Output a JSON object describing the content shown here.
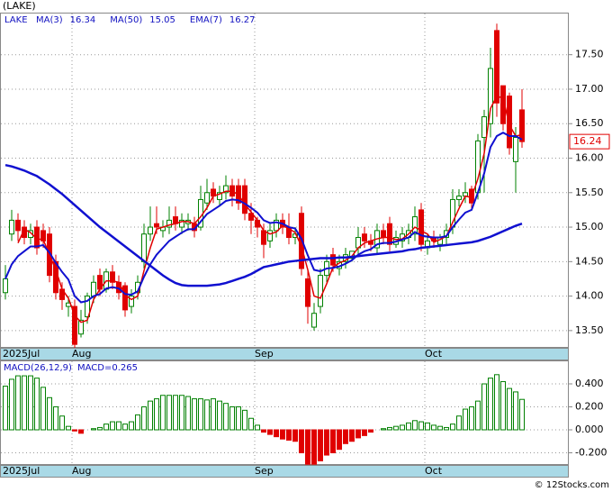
{
  "credit": "© 12Stocks.com",
  "chart_data": [
    {
      "type": "candlestick",
      "title": "(LAKE)",
      "symbol": "LAKE",
      "up_color": "#008000",
      "down_color": "#e00000",
      "grid": true,
      "categories": [
        "2025Jul",
        null,
        null,
        null,
        null,
        null,
        null,
        null,
        null,
        null,
        null,
        "Aug",
        null,
        null,
        null,
        null,
        null,
        null,
        null,
        null,
        null,
        null,
        null,
        null,
        null,
        null,
        null,
        null,
        null,
        null,
        null,
        null,
        null,
        null,
        null,
        null,
        null,
        null,
        null,
        null,
        "Sep",
        null,
        null,
        null,
        null,
        null,
        null,
        null,
        null,
        null,
        null,
        null,
        null,
        null,
        null,
        null,
        null,
        null,
        null,
        null,
        null,
        null,
        null,
        null,
        null,
        null,
        null,
        "Oct",
        null,
        null,
        null,
        null,
        null,
        null,
        null,
        null,
        null,
        null,
        null,
        null,
        null,
        null,
        null
      ],
      "open": [
        14.05,
        14.9,
        15.1,
        15.0,
        14.85,
        15.0,
        14.95,
        14.9,
        14.5,
        14.1,
        13.85,
        13.85,
        13.45,
        13.7,
        14.0,
        14.3,
        14.1,
        14.35,
        14.2,
        14.15,
        13.85,
        14.05,
        14.5,
        14.9,
        15.05,
        14.95,
        15.0,
        15.15,
        15.0,
        15.05,
        15.05,
        15.0,
        15.35,
        15.55,
        15.4,
        15.5,
        15.6,
        15.6,
        15.6,
        15.2,
        15.1,
        14.95,
        14.8,
        14.95,
        15.1,
        15.0,
        14.85,
        15.2,
        14.25,
        13.55,
        13.85,
        14.3,
        14.6,
        14.4,
        14.5,
        14.55,
        14.7,
        14.9,
        14.8,
        14.7,
        14.95,
        15.05,
        14.75,
        14.8,
        14.85,
        14.9,
        15.25,
        14.7,
        14.85,
        14.75,
        14.85,
        15.0,
        15.4,
        15.45,
        15.55,
        15.5,
        16.3,
        16.5,
        17.85,
        17.05,
        16.9,
        15.95,
        16.7
      ],
      "high": [
        14.45,
        15.25,
        15.2,
        15.1,
        15.05,
        15.1,
        15.05,
        15.0,
        14.6,
        14.2,
        14.0,
        13.95,
        13.8,
        14.05,
        14.3,
        14.4,
        14.4,
        14.45,
        14.3,
        14.2,
        14.1,
        14.3,
        15.05,
        15.3,
        15.3,
        15.1,
        15.3,
        15.3,
        15.2,
        15.2,
        15.15,
        15.6,
        15.7,
        15.65,
        15.6,
        15.75,
        15.7,
        15.7,
        15.7,
        15.35,
        15.15,
        15.05,
        15.05,
        15.2,
        15.2,
        15.2,
        15.0,
        15.3,
        14.4,
        13.9,
        14.4,
        14.6,
        14.7,
        14.6,
        14.7,
        14.65,
        15.0,
        15.0,
        14.9,
        15.05,
        15.05,
        15.15,
        14.95,
        15.0,
        15.05,
        15.3,
        15.35,
        14.9,
        14.95,
        14.9,
        15.05,
        15.55,
        15.55,
        15.65,
        15.6,
        16.35,
        16.7,
        17.6,
        17.95,
        17.05,
        16.95,
        16.45,
        17.0
      ],
      "low": [
        13.95,
        14.8,
        14.8,
        14.75,
        14.75,
        14.6,
        14.7,
        14.2,
        13.95,
        13.8,
        13.7,
        13.25,
        13.4,
        13.6,
        13.9,
        14.0,
        14.05,
        14.1,
        13.95,
        13.7,
        13.75,
        13.95,
        14.4,
        14.8,
        14.9,
        14.85,
        14.9,
        14.95,
        14.9,
        14.95,
        14.85,
        14.95,
        15.25,
        15.35,
        15.3,
        15.4,
        15.3,
        15.25,
        15.1,
        14.9,
        14.85,
        14.55,
        14.7,
        14.85,
        14.9,
        14.75,
        14.75,
        14.3,
        13.6,
        13.5,
        13.75,
        14.2,
        14.35,
        14.3,
        14.4,
        14.5,
        14.6,
        14.7,
        14.65,
        14.6,
        14.75,
        14.65,
        14.7,
        14.7,
        14.75,
        14.8,
        14.65,
        14.6,
        14.7,
        14.65,
        14.75,
        14.9,
        15.3,
        15.35,
        15.25,
        15.4,
        15.5,
        16.3,
        16.6,
        16.4,
        16.05,
        15.5,
        16.15
      ],
      "close": [
        14.25,
        15.1,
        14.95,
        14.85,
        14.95,
        14.7,
        14.8,
        14.3,
        14.05,
        13.95,
        13.9,
        13.3,
        13.65,
        14.0,
        14.2,
        14.1,
        14.35,
        14.2,
        14.05,
        13.8,
        14.0,
        14.2,
        14.9,
        15.0,
        15.0,
        15.0,
        15.1,
        15.05,
        15.1,
        15.1,
        14.95,
        15.4,
        15.5,
        15.45,
        15.5,
        15.6,
        15.45,
        15.35,
        15.2,
        15.1,
        15.0,
        14.75,
        14.95,
        15.1,
        15.0,
        14.85,
        14.9,
        14.4,
        13.85,
        13.75,
        14.3,
        14.5,
        14.45,
        14.5,
        14.6,
        14.65,
        14.85,
        14.8,
        14.75,
        14.95,
        14.85,
        14.75,
        14.85,
        14.9,
        14.95,
        15.15,
        14.75,
        14.8,
        14.8,
        14.85,
        14.95,
        15.4,
        15.45,
        15.5,
        15.35,
        16.25,
        16.6,
        17.3,
        16.8,
        16.5,
        16.15,
        16.3,
        16.24
      ],
      "series": [
        {
          "name": "MA(3)",
          "color": "#e00000",
          "width": 1.5,
          "values": [
            null,
            null,
            14.77,
            14.97,
            14.92,
            14.83,
            14.82,
            14.6,
            14.38,
            14.1,
            13.97,
            13.72,
            13.62,
            13.65,
            13.95,
            14.1,
            14.22,
            14.22,
            14.2,
            14.02,
            13.95,
            14.0,
            14.37,
            14.7,
            14.97,
            15.0,
            15.03,
            15.05,
            15.08,
            15.08,
            15.05,
            15.15,
            15.28,
            15.45,
            15.48,
            15.52,
            15.52,
            15.47,
            15.33,
            15.22,
            15.1,
            14.95,
            14.9,
            14.93,
            15.02,
            14.98,
            14.92,
            14.72,
            14.38,
            14.0,
            13.97,
            14.18,
            14.42,
            14.48,
            14.52,
            14.58,
            14.7,
            14.77,
            14.8,
            14.83,
            14.85,
            14.85,
            14.82,
            14.83,
            14.9,
            15.0,
            14.95,
            14.9,
            14.78,
            14.82,
            14.87,
            15.07,
            15.27,
            15.45,
            15.43,
            15.7,
            16.07,
            16.72,
            16.9,
            16.87,
            16.48,
            16.32,
            16.34
          ]
        },
        {
          "name": "MA(50)",
          "color": "#1010d0",
          "width": 2.5,
          "values": [
            15.9,
            15.88,
            15.85,
            15.82,
            15.78,
            15.74,
            15.68,
            15.62,
            15.55,
            15.48,
            15.4,
            15.32,
            15.24,
            15.16,
            15.08,
            15.0,
            14.93,
            14.86,
            14.79,
            14.72,
            14.65,
            14.58,
            14.51,
            14.44,
            14.37,
            14.3,
            14.24,
            14.19,
            14.16,
            14.15,
            14.15,
            14.15,
            14.15,
            14.16,
            14.17,
            14.19,
            14.22,
            14.25,
            14.28,
            14.32,
            14.37,
            14.42,
            14.44,
            14.46,
            14.48,
            14.5,
            14.51,
            14.52,
            14.53,
            14.54,
            14.55,
            14.55,
            14.55,
            14.56,
            14.56,
            14.57,
            14.58,
            14.59,
            14.6,
            14.61,
            14.62,
            14.63,
            14.64,
            14.65,
            14.67,
            14.68,
            14.7,
            14.71,
            14.72,
            14.73,
            14.74,
            14.75,
            14.76,
            14.77,
            14.78,
            14.8,
            14.83,
            14.86,
            14.9,
            14.94,
            14.98,
            15.02,
            15.05
          ]
        },
        {
          "name": "EMA(7)",
          "color": "#1010d0",
          "width": 2,
          "values": [
            14.25,
            14.46,
            14.58,
            14.65,
            14.72,
            14.72,
            14.74,
            14.63,
            14.48,
            14.35,
            14.24,
            14.0,
            13.91,
            13.93,
            14.0,
            14.03,
            14.11,
            14.13,
            14.11,
            14.03,
            14.02,
            14.07,
            14.28,
            14.46,
            14.6,
            14.7,
            14.8,
            14.86,
            14.92,
            14.97,
            14.97,
            15.08,
            15.19,
            15.25,
            15.31,
            15.38,
            15.4,
            15.39,
            15.34,
            15.28,
            15.21,
            15.1,
            15.06,
            15.07,
            15.05,
            15.0,
            14.98,
            14.83,
            14.59,
            14.38,
            14.36,
            14.4,
            14.41,
            14.43,
            14.47,
            14.52,
            14.6,
            14.65,
            14.68,
            14.75,
            14.77,
            14.77,
            14.79,
            14.82,
            14.85,
            14.93,
            14.88,
            14.86,
            14.85,
            14.85,
            14.87,
            15.0,
            15.11,
            15.21,
            15.25,
            15.5,
            15.78,
            16.16,
            16.32,
            16.37,
            16.32,
            16.32,
            16.27
          ]
        }
      ],
      "ylim": [
        13.25,
        18.11
      ],
      "yticks": [
        {
          "value": 13.5,
          "label": "13.50"
        },
        {
          "value": 14,
          "label": "14.00"
        },
        {
          "value": 14.5,
          "label": "14.50"
        },
        {
          "value": 15,
          "label": "15.00"
        },
        {
          "value": 15.5,
          "label": "15.50"
        },
        {
          "value": 16,
          "label": "16.00"
        },
        {
          "value": 16.5,
          "label": "16.50"
        },
        {
          "value": 17,
          "label": "17.00"
        },
        {
          "value": 17.5,
          "label": "17.50"
        }
      ]
    },
    {
      "type": "bar",
      "title": "MACD(26,12,9)",
      "readout": "MACD=0.265",
      "up_color": "#008000",
      "down_color": "#e00000",
      "values": [
        0.38,
        0.44,
        0.47,
        0.47,
        0.47,
        0.45,
        0.37,
        0.28,
        0.2,
        0.12,
        0.03,
        -0.01,
        -0.03,
        0.0,
        0.01,
        0.02,
        0.05,
        0.07,
        0.07,
        0.05,
        0.07,
        0.13,
        0.2,
        0.25,
        0.27,
        0.3,
        0.3,
        0.3,
        0.3,
        0.29,
        0.27,
        0.27,
        0.26,
        0.27,
        0.25,
        0.23,
        0.2,
        0.2,
        0.17,
        0.1,
        0.04,
        -0.02,
        -0.04,
        -0.06,
        -0.08,
        -0.09,
        -0.1,
        -0.2,
        -0.3,
        -0.3,
        -0.27,
        -0.22,
        -0.2,
        -0.17,
        -0.12,
        -0.1,
        -0.07,
        -0.05,
        -0.02,
        0.0,
        0.01,
        0.02,
        0.03,
        0.04,
        0.06,
        0.08,
        0.07,
        0.06,
        0.04,
        0.03,
        0.02,
        0.05,
        0.12,
        0.18,
        0.2,
        0.25,
        0.4,
        0.45,
        0.48,
        0.42,
        0.36,
        0.33,
        0.265
      ],
      "ylim": [
        -0.306,
        0.604
      ],
      "yticks": [
        {
          "value": -0.2,
          "label": "-0.200"
        },
        {
          "value": 0,
          "label": "0.000"
        },
        {
          "value": 0.2,
          "label": "0.200"
        },
        {
          "value": 0.4,
          "label": "0.400"
        }
      ]
    }
  ]
}
